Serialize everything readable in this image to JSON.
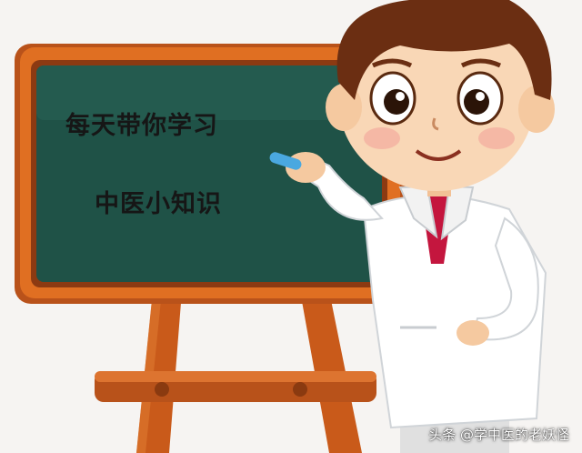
{
  "board": {
    "line1": "每天带你学习",
    "line2": "中医小知识"
  },
  "watermark": "头条 @学中医的老妖怪",
  "colors": {
    "background": "#f6f4f2",
    "board_frame": "#d9651c",
    "board_surface": "#1f5247",
    "easel_wood": "#c95a1a",
    "hair": "#6b2e12",
    "coat": "#ffffff",
    "shirt": "#c4163e",
    "chalk": "#4aa8e0"
  },
  "icons": {
    "illustration": "doctor-at-chalkboard-illustration"
  }
}
